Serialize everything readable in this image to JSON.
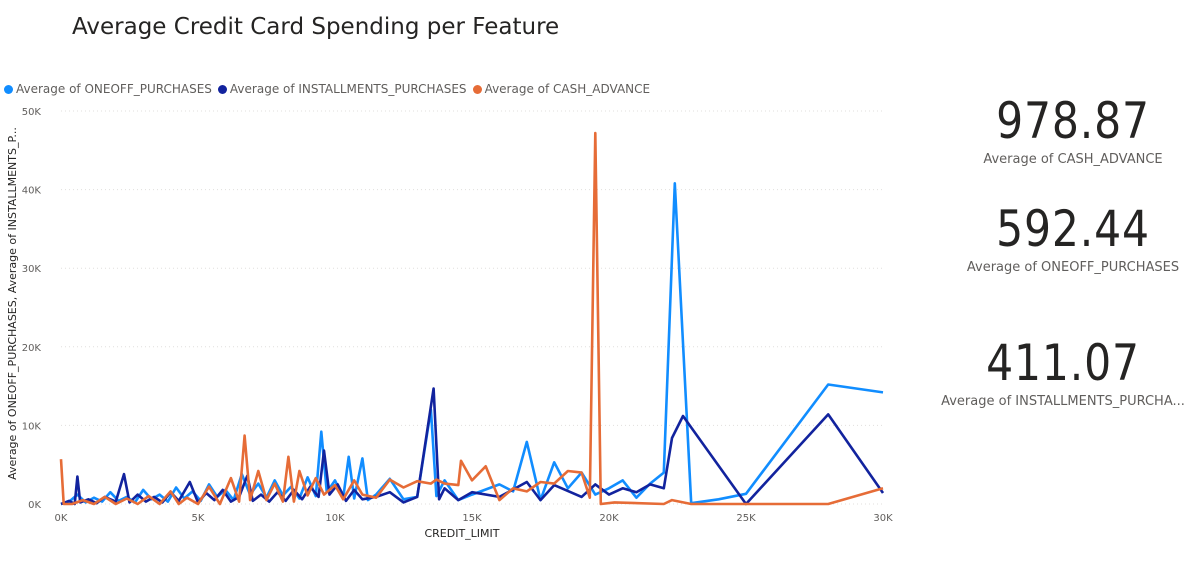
{
  "title": "Average Credit Card Spending per Feature",
  "cards": [
    {
      "value": "978.87",
      "label": "Average of CASH_ADVANCE"
    },
    {
      "value": "592.44",
      "label": "Average of ONEOFF_PURCHASES"
    },
    {
      "value": "411.07",
      "label": "Average of INSTALLMENTS_PURCHA..."
    }
  ],
  "chart_data": {
    "type": "line",
    "xlabel": "CREDIT_LIMIT",
    "ylabel": "Average of ONEOFF_PURCHASES, Average of INSTALLMENTS_P...",
    "xlim": [
      0,
      30000
    ],
    "ylim": [
      0,
      50000
    ],
    "x_ticks": [
      "0K",
      "5K",
      "10K",
      "15K",
      "20K",
      "25K",
      "30K"
    ],
    "y_ticks": [
      "0K",
      "10K",
      "20K",
      "30K",
      "40K",
      "50K"
    ],
    "grid": true,
    "legend_position": "top-left",
    "series": [
      {
        "name": "Average of ONEOFF_PURCHASES",
        "color": "#118DFF",
        "points": [
          [
            0,
            0
          ],
          [
            300,
            300
          ],
          [
            600,
            1200
          ],
          [
            900,
            200
          ],
          [
            1200,
            800
          ],
          [
            1500,
            300
          ],
          [
            1800,
            1500
          ],
          [
            2100,
            400
          ],
          [
            2400,
            900
          ],
          [
            2700,
            200
          ],
          [
            3000,
            1800
          ],
          [
            3300,
            600
          ],
          [
            3600,
            1200
          ],
          [
            3900,
            300
          ],
          [
            4200,
            2100
          ],
          [
            4500,
            700
          ],
          [
            4800,
            1600
          ],
          [
            5100,
            400
          ],
          [
            5400,
            2500
          ],
          [
            5700,
            900
          ],
          [
            6000,
            1800
          ],
          [
            6300,
            500
          ],
          [
            6600,
            3800
          ],
          [
            6900,
            1200
          ],
          [
            7200,
            2600
          ],
          [
            7500,
            800
          ],
          [
            7800,
            3000
          ],
          [
            8100,
            1100
          ],
          [
            8400,
            2200
          ],
          [
            8700,
            700
          ],
          [
            9000,
            3400
          ],
          [
            9300,
            1000
          ],
          [
            9500,
            9200
          ],
          [
            9700,
            1500
          ],
          [
            10000,
            3000
          ],
          [
            10300,
            800
          ],
          [
            10500,
            6000
          ],
          [
            10700,
            700
          ],
          [
            11000,
            5800
          ],
          [
            11200,
            500
          ],
          [
            11500,
            1200
          ],
          [
            12000,
            3200
          ],
          [
            12500,
            600
          ],
          [
            13000,
            900
          ],
          [
            13500,
            12000
          ],
          [
            13700,
            1000
          ],
          [
            14000,
            3000
          ],
          [
            14500,
            500
          ],
          [
            15000,
            1200
          ],
          [
            16000,
            2500
          ],
          [
            16500,
            1600
          ],
          [
            17000,
            7900
          ],
          [
            17500,
            500
          ],
          [
            18000,
            5300
          ],
          [
            18500,
            2000
          ],
          [
            19000,
            4000
          ],
          [
            19500,
            1200
          ],
          [
            20000,
            2000
          ],
          [
            20500,
            3000
          ],
          [
            21000,
            800
          ],
          [
            21500,
            2600
          ],
          [
            22000,
            4000
          ],
          [
            22400,
            40800
          ],
          [
            23000,
            100
          ],
          [
            24000,
            600
          ],
          [
            25000,
            1300
          ],
          [
            28000,
            15200
          ],
          [
            30000,
            14200
          ]
        ]
      },
      {
        "name": "Average of INSTALLMENTS_PURCHASES",
        "color": "#12239E",
        "points": [
          [
            0,
            0
          ],
          [
            300,
            400
          ],
          [
            500,
            0
          ],
          [
            600,
            3500
          ],
          [
            700,
            200
          ],
          [
            1000,
            600
          ],
          [
            1300,
            100
          ],
          [
            1600,
            900
          ],
          [
            2000,
            300
          ],
          [
            2300,
            3800
          ],
          [
            2500,
            200
          ],
          [
            2800,
            1200
          ],
          [
            3100,
            300
          ],
          [
            3400,
            900
          ],
          [
            3700,
            200
          ],
          [
            4000,
            1500
          ],
          [
            4300,
            400
          ],
          [
            4700,
            2800
          ],
          [
            5000,
            200
          ],
          [
            5300,
            1400
          ],
          [
            5600,
            500
          ],
          [
            5900,
            1800
          ],
          [
            6200,
            300
          ],
          [
            6500,
            900
          ],
          [
            6800,
            3600
          ],
          [
            7000,
            400
          ],
          [
            7300,
            1200
          ],
          [
            7600,
            300
          ],
          [
            7900,
            1500
          ],
          [
            8200,
            400
          ],
          [
            8500,
            1800
          ],
          [
            8800,
            600
          ],
          [
            9100,
            2200
          ],
          [
            9400,
            900
          ],
          [
            9600,
            6800
          ],
          [
            9800,
            1200
          ],
          [
            10100,
            2500
          ],
          [
            10400,
            400
          ],
          [
            10700,
            1800
          ],
          [
            11000,
            600
          ],
          [
            11500,
            900
          ],
          [
            12000,
            1500
          ],
          [
            12500,
            200
          ],
          [
            13000,
            900
          ],
          [
            13600,
            14700
          ],
          [
            13800,
            600
          ],
          [
            14000,
            2000
          ],
          [
            14500,
            500
          ],
          [
            15000,
            1500
          ],
          [
            16000,
            900
          ],
          [
            17000,
            2800
          ],
          [
            17500,
            500
          ],
          [
            18000,
            2400
          ],
          [
            19000,
            900
          ],
          [
            19500,
            2500
          ],
          [
            20000,
            1200
          ],
          [
            20500,
            2000
          ],
          [
            21000,
            1500
          ],
          [
            21500,
            2500
          ],
          [
            22000,
            2000
          ],
          [
            22300,
            8400
          ],
          [
            22700,
            11200
          ],
          [
            25000,
            0
          ],
          [
            28000,
            11400
          ],
          [
            30000,
            1400
          ]
        ]
      },
      {
        "name": "Average of CASH_ADVANCE",
        "color": "#E66C37",
        "points": [
          [
            0,
            5700
          ],
          [
            100,
            0
          ],
          [
            400,
            0
          ],
          [
            800,
            500
          ],
          [
            1200,
            0
          ],
          [
            1600,
            900
          ],
          [
            2000,
            0
          ],
          [
            2400,
            700
          ],
          [
            2800,
            0
          ],
          [
            3200,
            1000
          ],
          [
            3600,
            0
          ],
          [
            4000,
            1600
          ],
          [
            4300,
            0
          ],
          [
            4600,
            800
          ],
          [
            5000,
            0
          ],
          [
            5400,
            2200
          ],
          [
            5800,
            0
          ],
          [
            6200,
            3300
          ],
          [
            6500,
            300
          ],
          [
            6700,
            8700
          ],
          [
            6900,
            500
          ],
          [
            7200,
            4200
          ],
          [
            7500,
            500
          ],
          [
            7800,
            2600
          ],
          [
            8100,
            300
          ],
          [
            8300,
            6000
          ],
          [
            8500,
            300
          ],
          [
            8700,
            4200
          ],
          [
            9000,
            1100
          ],
          [
            9300,
            3300
          ],
          [
            9600,
            1200
          ],
          [
            10000,
            2400
          ],
          [
            10300,
            600
          ],
          [
            10700,
            3000
          ],
          [
            11000,
            1200
          ],
          [
            11500,
            800
          ],
          [
            12000,
            3100
          ],
          [
            12500,
            2100
          ],
          [
            13000,
            2900
          ],
          [
            13500,
            2600
          ],
          [
            13700,
            3100
          ],
          [
            14000,
            2600
          ],
          [
            14500,
            2400
          ],
          [
            14600,
            5500
          ],
          [
            15000,
            3000
          ],
          [
            15500,
            4800
          ],
          [
            16000,
            500
          ],
          [
            16500,
            2000
          ],
          [
            17000,
            1600
          ],
          [
            17500,
            2800
          ],
          [
            18000,
            2600
          ],
          [
            18500,
            4200
          ],
          [
            19000,
            4000
          ],
          [
            19300,
            800
          ],
          [
            19500,
            47200
          ],
          [
            19700,
            0
          ],
          [
            20200,
            200
          ],
          [
            22000,
            0
          ],
          [
            22300,
            500
          ],
          [
            23000,
            0
          ],
          [
            28000,
            0
          ],
          [
            30000,
            2000
          ]
        ]
      }
    ]
  }
}
